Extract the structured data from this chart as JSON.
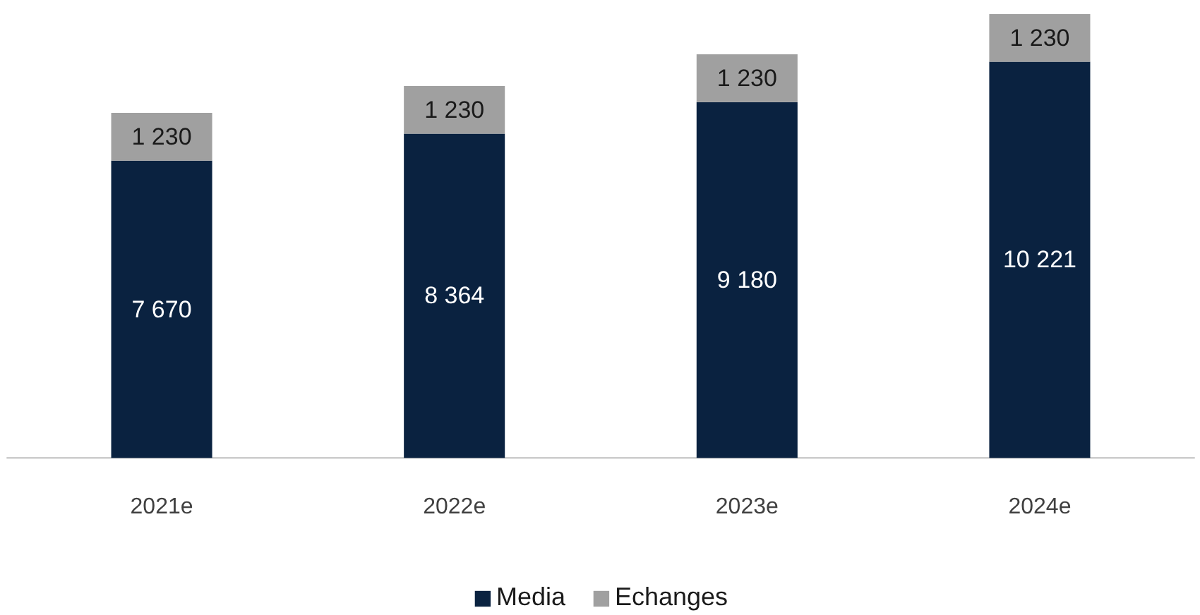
{
  "chart_data": {
    "type": "bar",
    "stacked": true,
    "categories": [
      "2021e",
      "2022e",
      "2023e",
      "2024e"
    ],
    "series": [
      {
        "name": "Media",
        "color": "#0a2240",
        "values": [
          7670,
          8364,
          9180,
          10221
        ],
        "value_labels": [
          "7 670",
          "8 364",
          "9 180",
          "10 221"
        ]
      },
      {
        "name": "Echanges",
        "color": "#a0a0a0",
        "values": [
          1230,
          1230,
          1230,
          1230
        ],
        "value_labels": [
          "1 230",
          "1 230",
          "1 230",
          "1 230"
        ]
      }
    ],
    "legend": "bottom"
  }
}
